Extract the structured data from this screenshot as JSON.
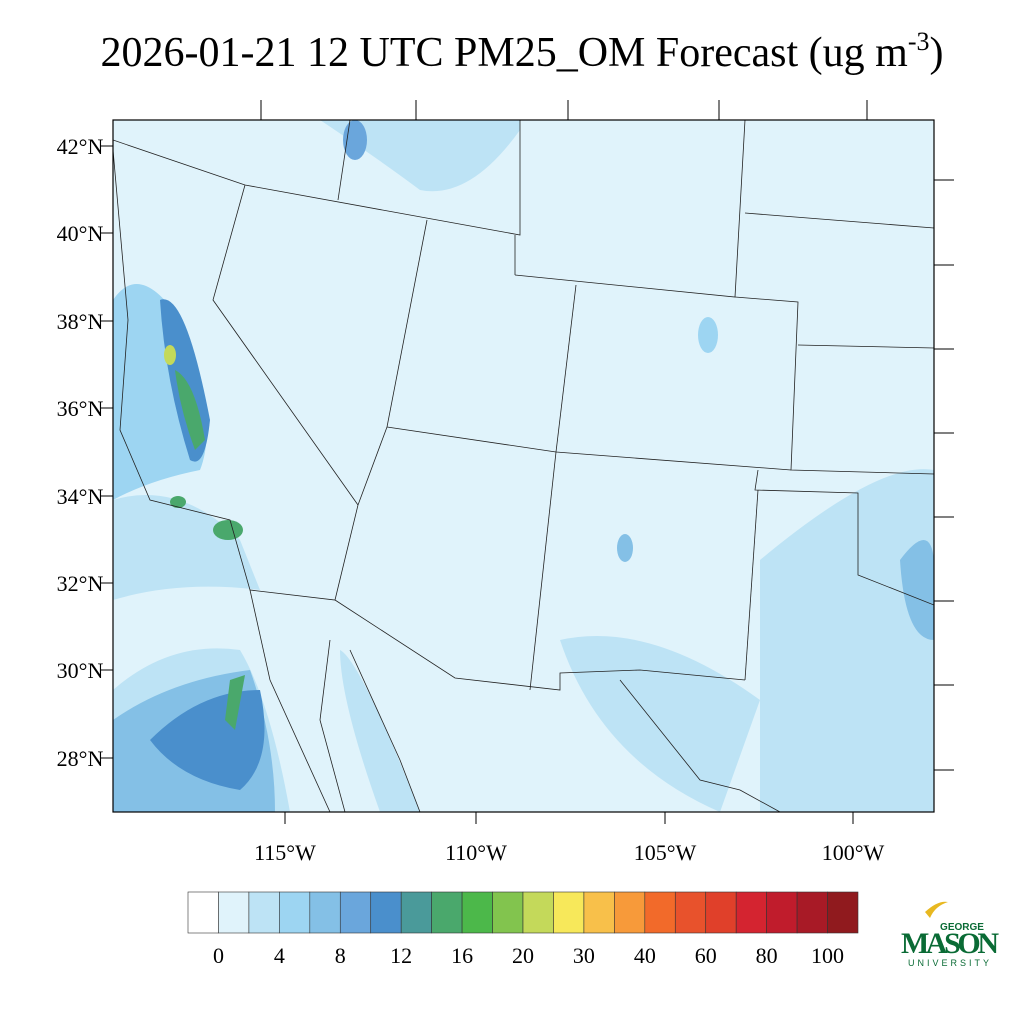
{
  "title": {
    "main": "2026-01-21 12 UTC PM25_OM Forecast (ug m",
    "superscript": "-3",
    "close": ")"
  },
  "map": {
    "lat_labels": [
      "42°N",
      "40°N",
      "38°N",
      "36°N",
      "34°N",
      "32°N",
      "30°N",
      "28°N"
    ],
    "lon_labels": [
      "115°W",
      "110°W",
      "105°W",
      "100°W"
    ]
  },
  "colorbar": {
    "labels": [
      0,
      4,
      8,
      12,
      16,
      20,
      30,
      40,
      60,
      80,
      100
    ],
    "colors": [
      "#ffffff",
      "#e0f3fb",
      "#bde3f5",
      "#9dd5f2",
      "#84c0e6",
      "#6aa6dc",
      "#4a8fcc",
      "#4a9a9a",
      "#4aa86c",
      "#4cb84a",
      "#82c44e",
      "#c4d95a",
      "#f7e85a",
      "#f8c04a",
      "#f79a3a",
      "#f26a2a",
      "#e8522c",
      "#e0402a",
      "#d42430",
      "#c01c2c",
      "#a81a26",
      "#901a1e"
    ]
  },
  "logo": {
    "top": "GEORGE",
    "middle": "MASON",
    "bottom": "UNIVERSITY"
  }
}
